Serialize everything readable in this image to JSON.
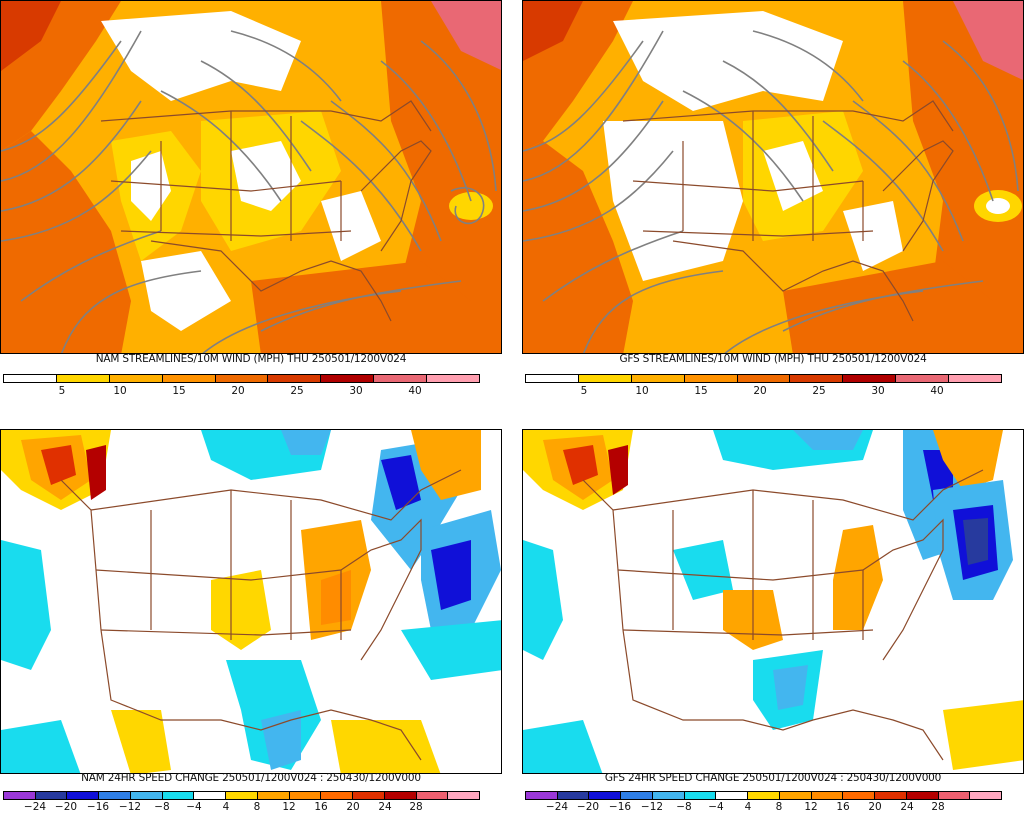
{
  "colors": {
    "streamline": "#808080",
    "border": "#8b4a2b",
    "wind_scale": [
      "#ffffff",
      "#ffd600",
      "#ffb000",
      "#ff9200",
      "#ef6a00",
      "#d83a00",
      "#b00000",
      "#e96874",
      "#ff9fb0"
    ],
    "change_scale": [
      "#9a38d8",
      "#273a9e",
      "#1010d8",
      "#2f7fe6",
      "#43b6ef",
      "#19dcee",
      "#ffffff",
      "#ffd700",
      "#ffa500",
      "#ff8c00",
      "#ff6a00",
      "#e03000",
      "#b40000",
      "#ee6070",
      "#ffa8c0"
    ]
  },
  "panels": [
    {
      "id": "nam-wind",
      "title": "NAM STREAMLINES/10M WIND (MPH)  THU 250501/1200V024",
      "colorbar_ticks": [
        "5",
        "10",
        "15",
        "20",
        "25",
        "30",
        "40"
      ]
    },
    {
      "id": "gfs-wind",
      "title": "GFS STREAMLINES/10M WIND (MPH)  THU 250501/1200V024",
      "colorbar_ticks": [
        "5",
        "10",
        "15",
        "20",
        "25",
        "30",
        "40"
      ]
    },
    {
      "id": "nam-change",
      "title": "NAM 24HR SPEED CHANGE 250501/1200V024 : 250430/1200V000",
      "colorbar_ticks": [
        "−24",
        "−20",
        "−16",
        "−12",
        "−8",
        "−4",
        "4",
        "8",
        "12",
        "16",
        "20",
        "24",
        "28"
      ]
    },
    {
      "id": "gfs-change",
      "title": "GFS 24HR SPEED CHANGE 250501/1200V024 : 250430/1200V000",
      "colorbar_ticks": [
        "−24",
        "−20",
        "−16",
        "−12",
        "−8",
        "−4",
        "4",
        "8",
        "12",
        "16",
        "20",
        "24",
        "28"
      ]
    }
  ]
}
